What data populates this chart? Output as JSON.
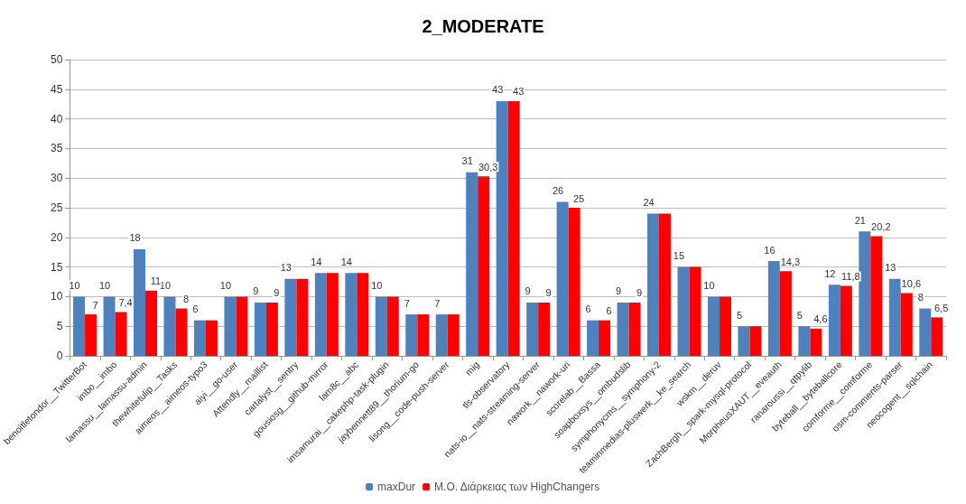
{
  "chart_data": {
    "type": "bar",
    "title": "2_MODERATE",
    "categories": [
      "benoitletondor__TwitterBot",
      "imbo__imbo",
      "lamassu__lamassu-admin",
      "thewhitetulip__Tasks",
      "aimeos__aimeos-typo3",
      "aiyi__go-user",
      "Attendly__maillist",
      "cartalyst__sentry",
      "gousiosg__github-mirror",
      "lam8c__abc",
      "imsamurai__cakephp-task-plugin",
      "jaybennett89__thorium-go",
      "lisong__code-push-server",
      "mig",
      "tls-observatory",
      "nats-io__nats-streaming-server",
      "nawork__nawork-uri",
      "scorelab__Bassa",
      "soapboxsys__ombudslib",
      "symphonycms__symphony-2",
      "teaminmedias-pluswerk__ke_search",
      "wskm__deruv",
      "ZachBergh__spark-mysql-protocol",
      "MorpheusXAUT__eveauth",
      "ranaroussi__qtpylib",
      "byteball__byteballcore",
      "comforme__comforme",
      "osm-comments-parser",
      "neocogent__sqlchain"
    ],
    "series": [
      {
        "name": "maxDur",
        "color": "#4f81bd",
        "values": [
          10,
          10,
          18,
          10,
          6,
          10,
          9,
          13,
          14,
          14,
          10,
          7,
          7,
          31,
          43,
          9,
          26,
          6,
          9,
          24,
          15,
          10,
          5,
          16,
          5,
          12,
          21,
          13,
          8
        ],
        "value_labels": [
          "10",
          "10",
          "18",
          "10",
          "6",
          "10",
          "9",
          "13",
          "14",
          "14",
          "10",
          "7",
          "7",
          "31",
          "43",
          "9",
          "26",
          "6",
          "9",
          "24",
          "15",
          "10",
          "5",
          "16",
          "5",
          "12",
          "21",
          "13",
          "8"
        ]
      },
      {
        "name": "Μ.Ο. Διάρκειας των HighChangers",
        "color": "#ff0000",
        "values": [
          7,
          7.4,
          11,
          8,
          6,
          10,
          9,
          13,
          14,
          14,
          10,
          7,
          7,
          30.3,
          43,
          9,
          25,
          6,
          9,
          24,
          15,
          10,
          5,
          14.3,
          4.6,
          11.8,
          20.2,
          10.6,
          6.5
        ],
        "value_labels": [
          "7",
          "7,4",
          "11",
          "8",
          null,
          null,
          "9",
          null,
          null,
          null,
          null,
          null,
          null,
          "30,3",
          "43",
          "9",
          "25",
          "6",
          "9",
          null,
          null,
          null,
          null,
          "14,3",
          "4,6",
          "11,8",
          "20,2",
          "10,6",
          "6,5"
        ]
      }
    ],
    "ylim": [
      0,
      50
    ],
    "yticks": [
      0,
      5,
      10,
      15,
      20,
      25,
      30,
      35,
      40,
      45,
      50
    ],
    "grid": "y",
    "legend": "bottom"
  }
}
